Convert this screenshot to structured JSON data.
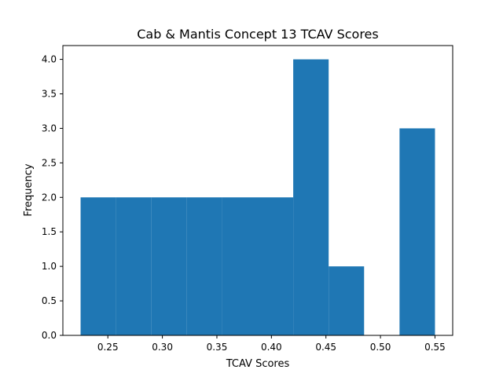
{
  "chart_data": {
    "type": "bar",
    "title": "Cab & Mantis Concept 13 TCAV Scores",
    "xlabel": "TCAV Scores",
    "ylabel": "Frequency",
    "bins": [
      {
        "x0": 0.225,
        "x1": 0.2575,
        "count": 2
      },
      {
        "x0": 0.2575,
        "x1": 0.29,
        "count": 2
      },
      {
        "x0": 0.29,
        "x1": 0.3225,
        "count": 2
      },
      {
        "x0": 0.3225,
        "x1": 0.355,
        "count": 2
      },
      {
        "x0": 0.355,
        "x1": 0.3875,
        "count": 2
      },
      {
        "x0": 0.3875,
        "x1": 0.42,
        "count": 2
      },
      {
        "x0": 0.42,
        "x1": 0.4525,
        "count": 4
      },
      {
        "x0": 0.4525,
        "x1": 0.485,
        "count": 1
      },
      {
        "x0": 0.485,
        "x1": 0.5175,
        "count": 0
      },
      {
        "x0": 0.5175,
        "x1": 0.55,
        "count": 3
      }
    ],
    "xlim": [
      0.20875,
      0.56625
    ],
    "ylim": [
      0,
      4.2
    ],
    "xticks": [
      "0.25",
      "0.30",
      "0.35",
      "0.40",
      "0.45",
      "0.50",
      "0.55"
    ],
    "yticks": [
      "0.0",
      "0.5",
      "1.0",
      "1.5",
      "2.0",
      "2.5",
      "3.0",
      "3.5",
      "4.0"
    ],
    "bar_color": "#1f77b4",
    "grid": false,
    "legend": false
  }
}
